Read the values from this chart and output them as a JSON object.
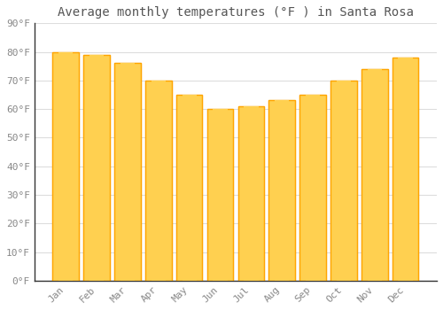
{
  "title": "Average monthly temperatures (°F ) in Santa Rosa",
  "months": [
    "Jan",
    "Feb",
    "Mar",
    "Apr",
    "May",
    "Jun",
    "Jul",
    "Aug",
    "Sep",
    "Oct",
    "Nov",
    "Dec"
  ],
  "values": [
    80,
    79,
    76,
    70,
    65,
    60,
    61,
    63,
    65,
    70,
    74,
    78
  ],
  "bar_color_face": "#FFA500",
  "bar_color_light": "#FFD050",
  "bar_color_edge": "#CC8800",
  "background_color": "#FFFFFF",
  "plot_bg_color": "#FFFFFF",
  "ylim": [
    0,
    90
  ],
  "yticks": [
    0,
    10,
    20,
    30,
    40,
    50,
    60,
    70,
    80,
    90
  ],
  "ytick_labels": [
    "0°F",
    "10°F",
    "20°F",
    "30°F",
    "40°F",
    "50°F",
    "60°F",
    "70°F",
    "80°F",
    "90°F"
  ],
  "grid_color": "#DDDDDD",
  "tick_label_color": "#888888",
  "title_color": "#555555",
  "title_fontsize": 10,
  "tick_fontsize": 8,
  "font_family": "monospace",
  "bar_width": 0.85
}
